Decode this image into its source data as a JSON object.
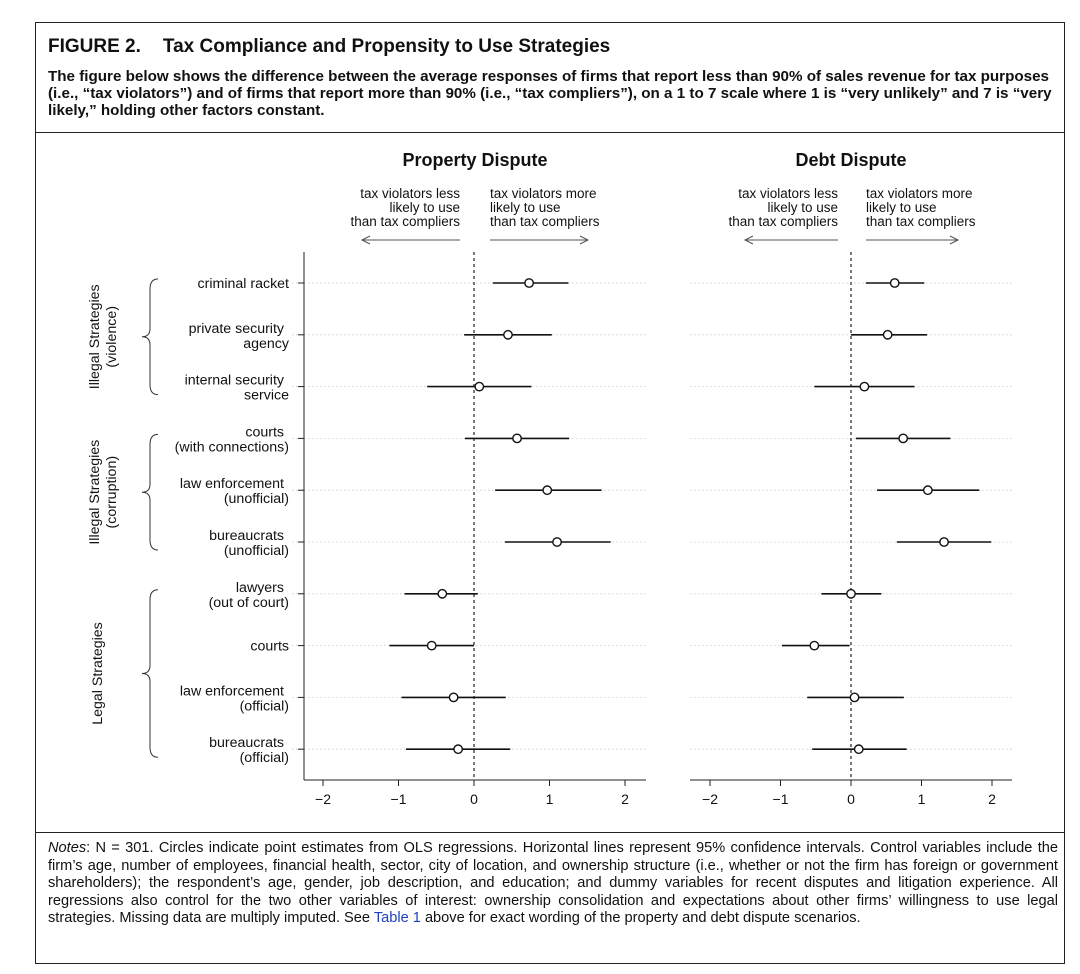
{
  "figure": {
    "label": "FIGURE 2.",
    "title": "Tax Compliance and Propensity to Use Strategies",
    "caption": "The figure below shows the difference between the average responses of firms that report less than 90% of sales revenue for tax purposes (i.e., “tax violators”) and of firms that report more than 90% (i.e., “tax compliers”), on a 1 to 7 scale where 1 is “very unlikely” and 7 is “very likely,” holding other factors constant."
  },
  "notes": {
    "label": "Notes",
    "text": ": N = 301. Circles indicate point estimates from OLS regressions. Horizontal lines represent 95% confidence intervals. Control variables include the firm’s age, number of employees, financial health, sector, city of location, and ownership structure (i.e., whether or not the firm has foreign or government shareholders); the respondent’s age, gender, job description, and education; and dummy variables for recent disputes and litigation experience. All regressions also control for the two other variables of interest: ownership consolidation and expectations about other firms’ willingness to use legal strategies. Missing data are multiply imputed. See ",
    "link": "Table 1",
    "tail": " above for exact wording of the property and debt dispute scenarios."
  },
  "chart_data": {
    "type": "scatter",
    "style": "coefficient plot: point estimates (open circles) with horizontal 95% confidence intervals",
    "reference_line": 0,
    "arrow_labels": {
      "left": [
        "tax violators less",
        "likely to use",
        "than tax compliers"
      ],
      "right": [
        "tax violators more",
        "likely to use",
        "than tax compliers"
      ]
    },
    "groups": [
      {
        "label": [
          "Illegal Strategies",
          "(violence)"
        ],
        "rows": [
          0,
          1,
          2
        ]
      },
      {
        "label": [
          "Illegal Strategies",
          "(corruption)"
        ],
        "rows": [
          3,
          4,
          5
        ]
      },
      {
        "label": [
          "Legal Strategies"
        ],
        "rows": [
          6,
          7,
          8,
          9
        ]
      }
    ],
    "categories": [
      [
        "criminal racket"
      ],
      [
        "private security",
        "agency"
      ],
      [
        "internal security",
        "service"
      ],
      [
        "courts",
        "(with connections)"
      ],
      [
        "law enforcement",
        "(unofficial)"
      ],
      [
        "bureaucrats",
        "(unofficial)"
      ],
      [
        "lawyers",
        "(out of court)"
      ],
      [
        "courts"
      ],
      [
        "law enforcement",
        "(official)"
      ],
      [
        "bureaucrats",
        "(official)"
      ]
    ],
    "panels": [
      {
        "title": "Property Dispute",
        "xlim": [
          -2.3,
          2.3
        ],
        "xticks": [
          -2,
          -1,
          0,
          1,
          2
        ],
        "estimates": [
          0.73,
          0.45,
          0.07,
          0.57,
          0.97,
          1.1,
          -0.42,
          -0.56,
          -0.27,
          -0.21
        ],
        "ci_low": [
          0.25,
          -0.13,
          -0.62,
          -0.12,
          0.28,
          0.41,
          -0.92,
          -1.12,
          -0.96,
          -0.9
        ],
        "ci_high": [
          1.25,
          1.03,
          0.76,
          1.26,
          1.69,
          1.81,
          0.05,
          0.0,
          0.42,
          0.48
        ]
      },
      {
        "title": "Debt Dispute",
        "xlim": [
          -2.3,
          2.3
        ],
        "xticks": [
          -2,
          -1,
          0,
          1,
          2
        ],
        "estimates": [
          0.62,
          0.52,
          0.19,
          0.74,
          1.09,
          1.32,
          0.0,
          -0.52,
          0.05,
          0.11
        ],
        "ci_low": [
          0.21,
          0.0,
          -0.52,
          0.07,
          0.37,
          0.65,
          -0.42,
          -0.98,
          -0.62,
          -0.55
        ],
        "ci_high": [
          1.04,
          1.08,
          0.9,
          1.41,
          1.82,
          1.99,
          0.43,
          -0.02,
          0.75,
          0.79
        ]
      }
    ]
  }
}
